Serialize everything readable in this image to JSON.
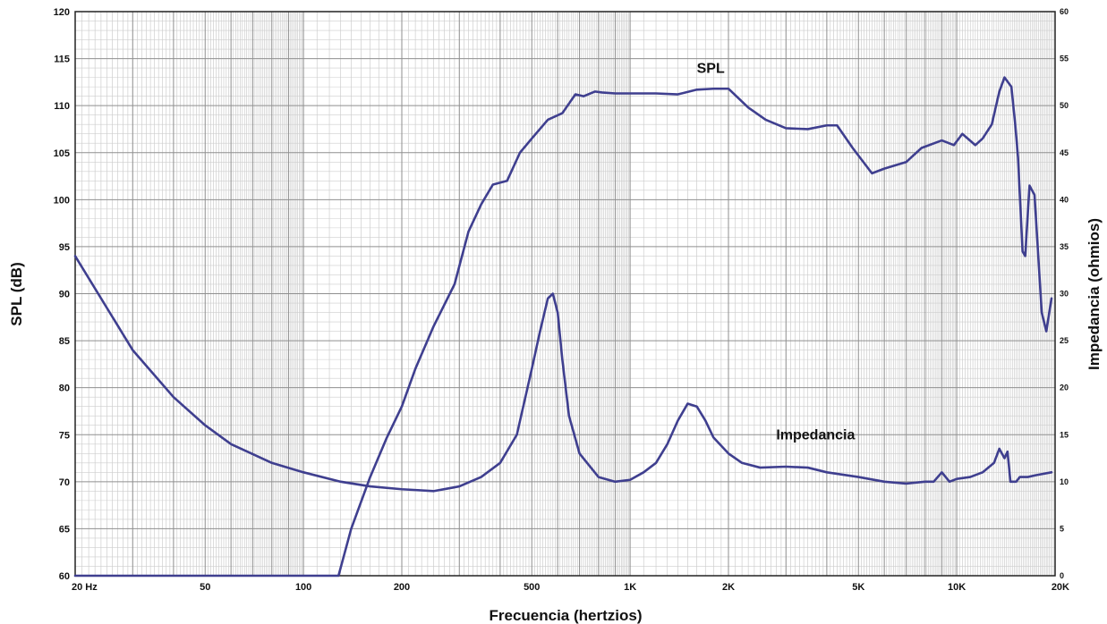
{
  "chart_data": {
    "type": "line",
    "title": "",
    "xlabel": "Frecuencia (hertzios)",
    "ylabel": "SPL (dB)",
    "y2label": "Impedancia (ohmios)",
    "x_scale": "log",
    "xlim": [
      20,
      20000
    ],
    "ylim": [
      60,
      120
    ],
    "y2lim": [
      0,
      60
    ],
    "grid": true,
    "x_tick_labels": [
      {
        "value": 20,
        "label": "20 Hz"
      },
      {
        "value": 50,
        "label": "50"
      },
      {
        "value": 100,
        "label": "100"
      },
      {
        "value": 200,
        "label": "200"
      },
      {
        "value": 500,
        "label": "500"
      },
      {
        "value": 1000,
        "label": "1K"
      },
      {
        "value": 2000,
        "label": "2K"
      },
      {
        "value": 5000,
        "label": "5K"
      },
      {
        "value": 10000,
        "label": "10K"
      },
      {
        "value": 20000,
        "label": "20K"
      }
    ],
    "y_ticks": [
      "60",
      "65",
      "70",
      "75",
      "80",
      "85",
      "90",
      "95",
      "100",
      "105",
      "110",
      "115",
      "120"
    ],
    "y2_ticks": [
      "0",
      "5",
      "10",
      "15",
      "20",
      "25",
      "30",
      "35",
      "40",
      "45",
      "50",
      "55",
      "60"
    ],
    "line_color": "#3f3f8f",
    "series": [
      {
        "name": "SPL",
        "axis": "left",
        "x": [
          20,
          128,
          140,
          160,
          180,
          200,
          220,
          250,
          290,
          320,
          350,
          380,
          420,
          460,
          500,
          560,
          620,
          680,
          720,
          780,
          820,
          900,
          1000,
          1200,
          1400,
          1600,
          1800,
          2000,
          2300,
          2600,
          3000,
          3500,
          4000,
          4300,
          4800,
          5500,
          6000,
          7000,
          7800,
          9000,
          9800,
          10400,
          11400,
          12000,
          12800,
          13500,
          14000,
          14700,
          15100,
          15400,
          15900,
          16200,
          16700,
          17300,
          18200,
          18800,
          19500
        ],
        "y": [
          60,
          60,
          65,
          70.5,
          74.7,
          78,
          82,
          86.5,
          91,
          96.6,
          99.5,
          101.6,
          102,
          105,
          106.5,
          108.5,
          109.2,
          111.2,
          111,
          111.5,
          111.4,
          111.3,
          111.3,
          111.3,
          111.2,
          111.7,
          111.8,
          111.8,
          109.8,
          108.5,
          107.6,
          107.5,
          107.9,
          107.9,
          105.5,
          102.8,
          103.3,
          104,
          105.5,
          106.3,
          105.8,
          107,
          105.8,
          106.5,
          108,
          111.5,
          113,
          112,
          108,
          104.5,
          94.5,
          94,
          101.5,
          100.5,
          88,
          86,
          89.5
        ]
      },
      {
        "name": "Impedancia",
        "axis": "right",
        "x": [
          20,
          30,
          40,
          50,
          60,
          80,
          100,
          130,
          160,
          200,
          250,
          300,
          350,
          400,
          450,
          500,
          530,
          560,
          580,
          600,
          620,
          650,
          700,
          800,
          900,
          1000,
          1100,
          1200,
          1300,
          1400,
          1500,
          1600,
          1700,
          1800,
          2000,
          2200,
          2500,
          3000,
          3500,
          4000,
          5000,
          6000,
          7000,
          8000,
          8500,
          9000,
          9500,
          10000,
          11000,
          12000,
          13000,
          13500,
          14000,
          14300,
          14600,
          14900,
          15200,
          15600,
          16500,
          17500,
          19500
        ],
        "y": [
          34,
          24,
          19,
          16,
          14,
          12,
          11,
          10,
          9.5,
          9.2,
          9,
          9.5,
          10.5,
          12,
          15,
          22,
          26,
          29.5,
          30,
          28,
          23,
          17,
          13,
          10.5,
          10,
          10.2,
          11,
          12,
          14,
          16.5,
          18.3,
          18,
          16.5,
          14.7,
          13,
          12,
          11.5,
          11.6,
          11.5,
          11,
          10.5,
          10,
          9.8,
          10,
          10,
          11,
          10,
          10.3,
          10.5,
          11,
          12,
          13.5,
          12.5,
          13.2,
          10,
          10,
          10,
          10.5,
          10.5,
          10.7,
          11
        ]
      }
    ],
    "annotations": [
      {
        "text": "SPL",
        "x": 1600,
        "y": 113.5
      },
      {
        "text": "Impedancia",
        "x": 2800,
        "y": 74.5
      }
    ]
  }
}
